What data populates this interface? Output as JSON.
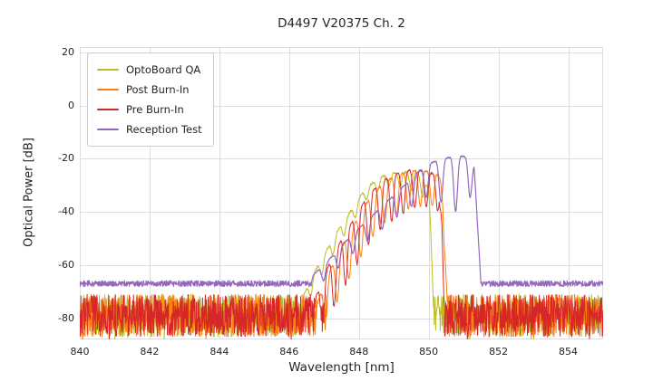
{
  "chart_data": {
    "type": "line",
    "title": "D4497 V20375 Ch. 2",
    "xlabel": "Wavelength [nm]",
    "ylabel": "Optical Power [dB]",
    "xlim": [
      840,
      855
    ],
    "ylim": [
      -88,
      22
    ],
    "xticks": [
      840,
      842,
      844,
      846,
      848,
      850,
      852,
      854
    ],
    "yticks": [
      20,
      0,
      -20,
      -40,
      -60,
      -80
    ],
    "grid": true,
    "grid_color": "#dcdce2",
    "legend_position": "upper left",
    "noise_floor_db": {
      "min": -87,
      "max": -71
    },
    "series": [
      {
        "name": "OptoBoard QA",
        "color": "#bcbd22",
        "seed": 11,
        "line_width": 1,
        "noise": {
          "min": -87,
          "max": -71,
          "spike_prob": 0.05,
          "spike_extra": 4
        },
        "envelope": [
          [
            846.25,
            -76
          ],
          [
            846.6,
            -66
          ],
          [
            847.0,
            -56
          ],
          [
            847.4,
            -47
          ],
          [
            847.8,
            -39
          ],
          [
            848.2,
            -31
          ],
          [
            848.6,
            -27
          ],
          [
            849.0,
            -25.5
          ],
          [
            849.5,
            -25
          ],
          [
            849.85,
            -26
          ],
          [
            850.0,
            -32
          ],
          [
            850.1,
            -55
          ],
          [
            850.18,
            -80
          ]
        ],
        "ripple": {
          "period": 0.32,
          "phase": 847.9,
          "sharpness": 2,
          "depths": [
            [
              847,
              6
            ],
            [
              849,
              4
            ],
            [
              849.9,
              9
            ]
          ]
        },
        "signal_jitter": 0.8
      },
      {
        "name": "Post Burn-In",
        "color": "#ff7f0e",
        "seed": 22,
        "line_width": 1,
        "noise": {
          "min": -87,
          "max": -71,
          "spike_prob": 0.05,
          "spike_extra": 4
        },
        "envelope": [
          [
            846.7,
            -78
          ],
          [
            847.1,
            -64
          ],
          [
            847.5,
            -53
          ],
          [
            847.9,
            -44
          ],
          [
            848.3,
            -35
          ],
          [
            848.7,
            -29
          ],
          [
            849.1,
            -26
          ],
          [
            849.5,
            -24.5
          ],
          [
            849.9,
            -24.5
          ],
          [
            850.2,
            -25.5
          ],
          [
            850.4,
            -28
          ],
          [
            850.48,
            -50
          ],
          [
            850.55,
            -80
          ]
        ],
        "ripple": {
          "period": 0.34,
          "phase": 847.72,
          "sharpness": 2,
          "depths": [
            [
              847,
              18
            ],
            [
              849,
              15
            ],
            [
              850.4,
              12
            ]
          ]
        },
        "signal_jitter": 0.8
      },
      {
        "name": "Pre Burn-In",
        "color": "#d62728",
        "seed": 33,
        "line_width": 1,
        "noise": {
          "min": -87,
          "max": -71,
          "spike_prob": 0.05,
          "spike_extra": 4
        },
        "envelope": [
          [
            846.6,
            -78
          ],
          [
            847.0,
            -64
          ],
          [
            847.4,
            -53
          ],
          [
            847.8,
            -44
          ],
          [
            848.2,
            -35
          ],
          [
            848.6,
            -29
          ],
          [
            849.0,
            -26
          ],
          [
            849.4,
            -24.5
          ],
          [
            849.8,
            -24.5
          ],
          [
            850.1,
            -25.5
          ],
          [
            850.3,
            -27
          ],
          [
            850.38,
            -45
          ],
          [
            850.45,
            -80
          ]
        ],
        "ripple": {
          "period": 0.33,
          "phase": 847.62,
          "sharpness": 2,
          "depths": [
            [
              846.8,
              20
            ],
            [
              848.0,
              19
            ],
            [
              849.0,
              17
            ],
            [
              849.8,
              13
            ],
            [
              850.4,
              13
            ]
          ]
        },
        "signal_jitter": 0.8
      },
      {
        "name": "Reception Test",
        "color": "#9467bd",
        "seed": 44,
        "line_width": 1.2,
        "baseline": {
          "level": -67,
          "amp": 1.1
        },
        "envelope": [
          [
            846.45,
            -67
          ],
          [
            846.9,
            -61
          ],
          [
            847.3,
            -56
          ],
          [
            847.7,
            -50
          ],
          [
            848.1,
            -45
          ],
          [
            848.5,
            -40
          ],
          [
            848.9,
            -35
          ],
          [
            849.3,
            -30
          ],
          [
            849.7,
            -25
          ],
          [
            850.0,
            -22
          ],
          [
            850.3,
            -20.5
          ],
          [
            850.6,
            -19.5
          ],
          [
            850.95,
            -19
          ],
          [
            851.15,
            -19.5
          ],
          [
            851.3,
            -22
          ],
          [
            851.4,
            -45
          ],
          [
            851.5,
            -67
          ]
        ],
        "ripple": {
          "period": 0.42,
          "phase": 848.25,
          "sharpness": 3,
          "depths": [
            [
              847,
              6
            ],
            [
              849,
              9
            ],
            [
              850,
              12
            ],
            [
              850.9,
              22
            ],
            [
              851.35,
              10
            ]
          ]
        },
        "signal_jitter": 0.5
      }
    ]
  }
}
